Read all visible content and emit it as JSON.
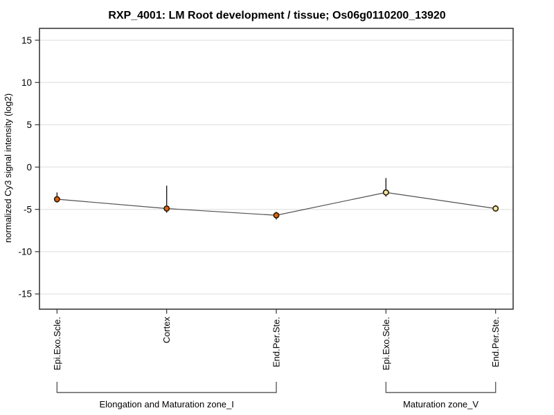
{
  "page": {
    "background": "#ffffff"
  },
  "chart_data": {
    "type": "line",
    "title": "RXP_4001: LM Root development / tissue; Os06g0110200_13920",
    "ylabel": "normalized Cy3 signal intensity (log2)",
    "xlabel": "",
    "ylim": [
      -16.8,
      16.4
    ],
    "yticks": [
      15,
      10,
      5,
      0,
      -5,
      -10,
      -15
    ],
    "grid": true,
    "legend_position": "none",
    "categories": [
      "Epi.Exo.Scle.",
      "Cortex",
      "End.Per.Ste.",
      "Epi.Exo.Scle.",
      "End.Per.Ste."
    ],
    "series": [
      {
        "name": "normalized Cy3 signal intensity (log2)",
        "values": [
          -3.8,
          -4.9,
          -5.7,
          -3.0,
          -4.9
        ],
        "error_high": [
          -3.0,
          -2.2,
          -5.3,
          -1.3,
          -4.5
        ],
        "error_low": [
          -4.2,
          -5.4,
          -6.2,
          -3.5,
          -5.2
        ],
        "point_colors": [
          "#E2610E",
          "#E2610E",
          "#E2610E",
          "#EDE9A6",
          "#EDE9A6"
        ]
      }
    ],
    "groups": [
      {
        "label": "Elongation and Maturation zone_I",
        "start": 0,
        "end": 2
      },
      {
        "label": "Maturation zone_V",
        "start": 3,
        "end": 4
      }
    ],
    "colors": {
      "marker_stroke": "#2B1A05",
      "line": "#4F4F4F",
      "error_bar": "#1C1C1C",
      "grid": "#DEDEDE",
      "box": "#3A3A3A",
      "tick": "#333333",
      "bracket": "#5C5C5C",
      "text": "#000000"
    }
  }
}
